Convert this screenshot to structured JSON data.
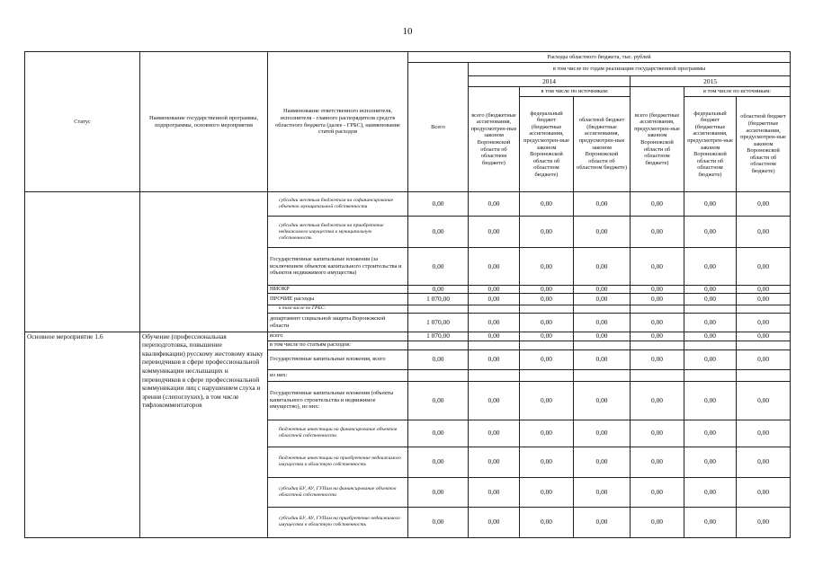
{
  "page_number": "10",
  "header": {
    "status": "Статус",
    "program_name": "Наименование государственной программы, подпрограммы, основного мероприятия",
    "executor": "Наименование ответственного исполнителя, исполнителя - главного распорядителя средств областного бюджета (далее - ГРБС), наименование статей расходов",
    "expenses": "Расходы областного бюджета, тыс. рублей",
    "total": "Всего",
    "by_years": "в том числе по годам реализации государственной программы",
    "year1": "2014",
    "year2": "2015",
    "by_sources": "в том числе по источникам:",
    "all_funds": "всего (бюджетные ассигнования, предусмотрен-ные законом Воронежской области об областном бюджете)",
    "federal": "федеральный бюджет (бюджетные ассигнования, предусмотрен-ные законом Воронежской области об областном бюджете)",
    "regional": "областной бюджет (бюджетные ассигнования, предусмотрен-ные законом Воронежской области об областном бюджете)"
  },
  "groups": [
    {
      "status": "",
      "name": ""
    },
    {
      "status": "Основное мероприятие 1.6",
      "name": "Обучение (профессиональная переподготовка, повышение квалификации) русскому жестовому языку переводчиков в сфере профессиональной коммуникации неслышащих и переводчиков в сфере профессиональной коммуникации лиц с нарушением слуха и зрения (слепоглухих), в том числе тифлокомментаторов"
    }
  ],
  "rows": [
    {
      "group": 0,
      "italic": true,
      "label": "субсидии местным бюджетам на софинансирование объектов муниципальной собственности",
      "values": [
        "0,00",
        "0,00",
        "0,00",
        "0,00",
        "0,00",
        "0,00",
        "0,00"
      ]
    },
    {
      "group": 0,
      "italic": true,
      "label": "субсидии местным бюджетам на приобретение недвижимого имущества в муниципальную собственность",
      "values": [
        "0,00",
        "0,00",
        "0,00",
        "0,00",
        "0,00",
        "0,00",
        "0,00"
      ]
    },
    {
      "group": 0,
      "italic": false,
      "label": "Государственные капитальные вложения (за исключением объектов капитального строительства и объектов недвижимого имущества)",
      "values": [
        "0,00",
        "0,00",
        "0,00",
        "0,00",
        "0,00",
        "0,00",
        "0,00"
      ]
    },
    {
      "group": 0,
      "italic": false,
      "label": "НИОКР",
      "values": [
        "0,00",
        "0,00",
        "0,00",
        "0,00",
        "0,00",
        "0,00",
        "0,00"
      ]
    },
    {
      "group": 0,
      "italic": false,
      "label": "ПРОЧИЕ  расходы",
      "values": [
        "1 070,00",
        "0,00",
        "0,00",
        "0,00",
        "0,00",
        "0,00",
        "0,00"
      ]
    },
    {
      "group": 0,
      "italic": true,
      "label": "в том числе по ГРБС:",
      "values": [
        "",
        "",
        "",
        "",
        "",
        "",
        ""
      ]
    },
    {
      "group": 0,
      "italic": false,
      "label": "департамент социальной защиты Воронежской области",
      "values": [
        "1 070,00",
        "0,00",
        "0,00",
        "0,00",
        "0,00",
        "0,00",
        "0,00"
      ]
    },
    {
      "group": 1,
      "italic": false,
      "label": "всего",
      "values": [
        "1 070,00",
        "0,00",
        "0,00",
        "0,00",
        "0,00",
        "0,00",
        "0,00"
      ]
    },
    {
      "group": 1,
      "italic": false,
      "label": "в том числе по статьям расходов:",
      "values": [
        "",
        "",
        "",
        "",
        "",
        "",
        ""
      ]
    },
    {
      "group": 1,
      "italic": false,
      "label": "Государственные капитальные вложения, всего",
      "values": [
        "0,00",
        "0,00",
        "0,00",
        "0,00",
        "0,00",
        "0,00",
        "0,00"
      ]
    },
    {
      "group": 1,
      "italic": false,
      "label": "из них:",
      "values": [
        "",
        "",
        "",
        "",
        "",
        "",
        ""
      ]
    },
    {
      "group": 1,
      "italic": false,
      "label": "Государственные капитальные вложения (объекты капитального строительства и недвижимое имущество), из них:",
      "values": [
        "0,00",
        "0,00",
        "0,00",
        "0,00",
        "0,00",
        "0,00",
        "0,00"
      ]
    },
    {
      "group": 1,
      "italic": true,
      "label": "бюджетные инвестиции на финансирование объектов областной собственности",
      "values": [
        "0,00",
        "0,00",
        "0,00",
        "0,00",
        "0,00",
        "0,00",
        "0,00"
      ]
    },
    {
      "group": 1,
      "italic": true,
      "label": "бюджетные инвестиции на приобретение недвижимого имущества в областную собственность",
      "values": [
        "0,00",
        "0,00",
        "0,00",
        "0,00",
        "0,00",
        "0,00",
        "0,00"
      ]
    },
    {
      "group": 1,
      "italic": true,
      "label": "субсидии БУ, АУ, ГУПам на финансирование объектов областной собственности",
      "values": [
        "0,00",
        "0,00",
        "0,00",
        "0,00",
        "0,00",
        "0,00",
        "0,00"
      ]
    },
    {
      "group": 1,
      "italic": true,
      "label": "субсидии БУ, АУ, ГУПам на приобретение недвижимого имущества в областную собственность",
      "values": [
        "0,00",
        "0,00",
        "0,00",
        "0,00",
        "0,00",
        "0,00",
        "0,00"
      ]
    }
  ]
}
